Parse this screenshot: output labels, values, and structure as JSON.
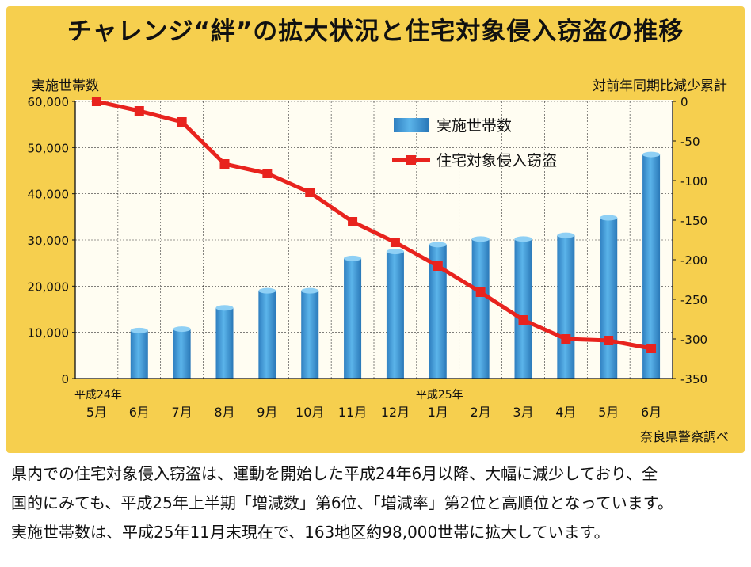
{
  "chart_data": {
    "type": "bar+line",
    "title": "チャレンジ“絆”の拡大状況と住宅対象侵入窃盗の推移",
    "ylabel_left": "実施世帯数",
    "ylabel_right": "対前年同期比減少累計",
    "categories": [
      {
        "era": "平成24年",
        "month": "5月"
      },
      {
        "era": "",
        "month": "6月"
      },
      {
        "era": "",
        "month": "7月"
      },
      {
        "era": "",
        "month": "8月"
      },
      {
        "era": "",
        "month": "9月"
      },
      {
        "era": "",
        "month": "10月"
      },
      {
        "era": "",
        "month": "11月"
      },
      {
        "era": "",
        "month": "12月"
      },
      {
        "era": "平成25年",
        "month": "1月"
      },
      {
        "era": "",
        "month": "2月"
      },
      {
        "era": "",
        "month": "3月"
      },
      {
        "era": "",
        "month": "4月"
      },
      {
        "era": "",
        "month": "5月"
      },
      {
        "era": "",
        "month": "6月"
      }
    ],
    "series": [
      {
        "name": "実施世帯数",
        "type": "bar",
        "axis": "left",
        "color": "#3f9ad8",
        "values": [
          0,
          10400,
          10700,
          15300,
          19000,
          19000,
          26000,
          27500,
          29000,
          30200,
          30200,
          31000,
          34800,
          48500
        ]
      },
      {
        "name": "住宅対象侵入窃盗",
        "type": "line",
        "axis": "right",
        "color": "#e8231e",
        "values": [
          0,
          -12,
          -26,
          -79,
          -91,
          -115,
          -152,
          -178,
          -208,
          -241,
          -276,
          -300,
          -302,
          -312
        ]
      }
    ],
    "yleft": {
      "min": 0,
      "max": 60000,
      "ticks": [
        "0",
        "10,000",
        "20,000",
        "30,000",
        "40,000",
        "50,000",
        "60,000"
      ]
    },
    "yright": {
      "min": -350,
      "max": 0,
      "ticks": [
        "0",
        "-50",
        "-100",
        "-150",
        "-200",
        "-250",
        "-300",
        "-350"
      ]
    },
    "grid": true,
    "legend": "top-right",
    "source": "奈良県警察調べ"
  },
  "caption": [
    "県内での住宅対象侵入窃盗は、運動を開始した平成24年6月以降、大幅に減少しており、全",
    "国的にみても、平成25年上半期「増減数」第6位、「増減率」第2位と高順位となっています。",
    "実施世帯数は、平成25年11月末現在で、163地区約98,000世帯に拡大しています。"
  ]
}
